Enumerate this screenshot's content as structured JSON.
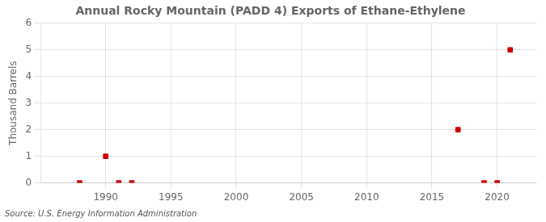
{
  "chart_data": {
    "type": "scatter",
    "title": "Annual Rocky Mountain (PADD 4) Exports of Ethane-Ethylene",
    "ylabel": "Thousand Barrels",
    "source": "Source: U.S. Energy Information Administration",
    "x": [
      1988,
      1990,
      1991,
      1992,
      2017,
      2019,
      2020,
      2021
    ],
    "values": [
      0,
      1,
      0,
      0,
      2,
      0,
      0,
      5
    ],
    "color": "#cc0000",
    "marker": "square",
    "xlim": [
      1985,
      2023
    ],
    "ylim": [
      0,
      6
    ],
    "xticks": [
      1990,
      1995,
      2000,
      2005,
      2010,
      2015,
      2020
    ],
    "yticks": [
      0,
      1,
      2,
      3,
      4,
      5,
      6
    ],
    "grid": true
  }
}
